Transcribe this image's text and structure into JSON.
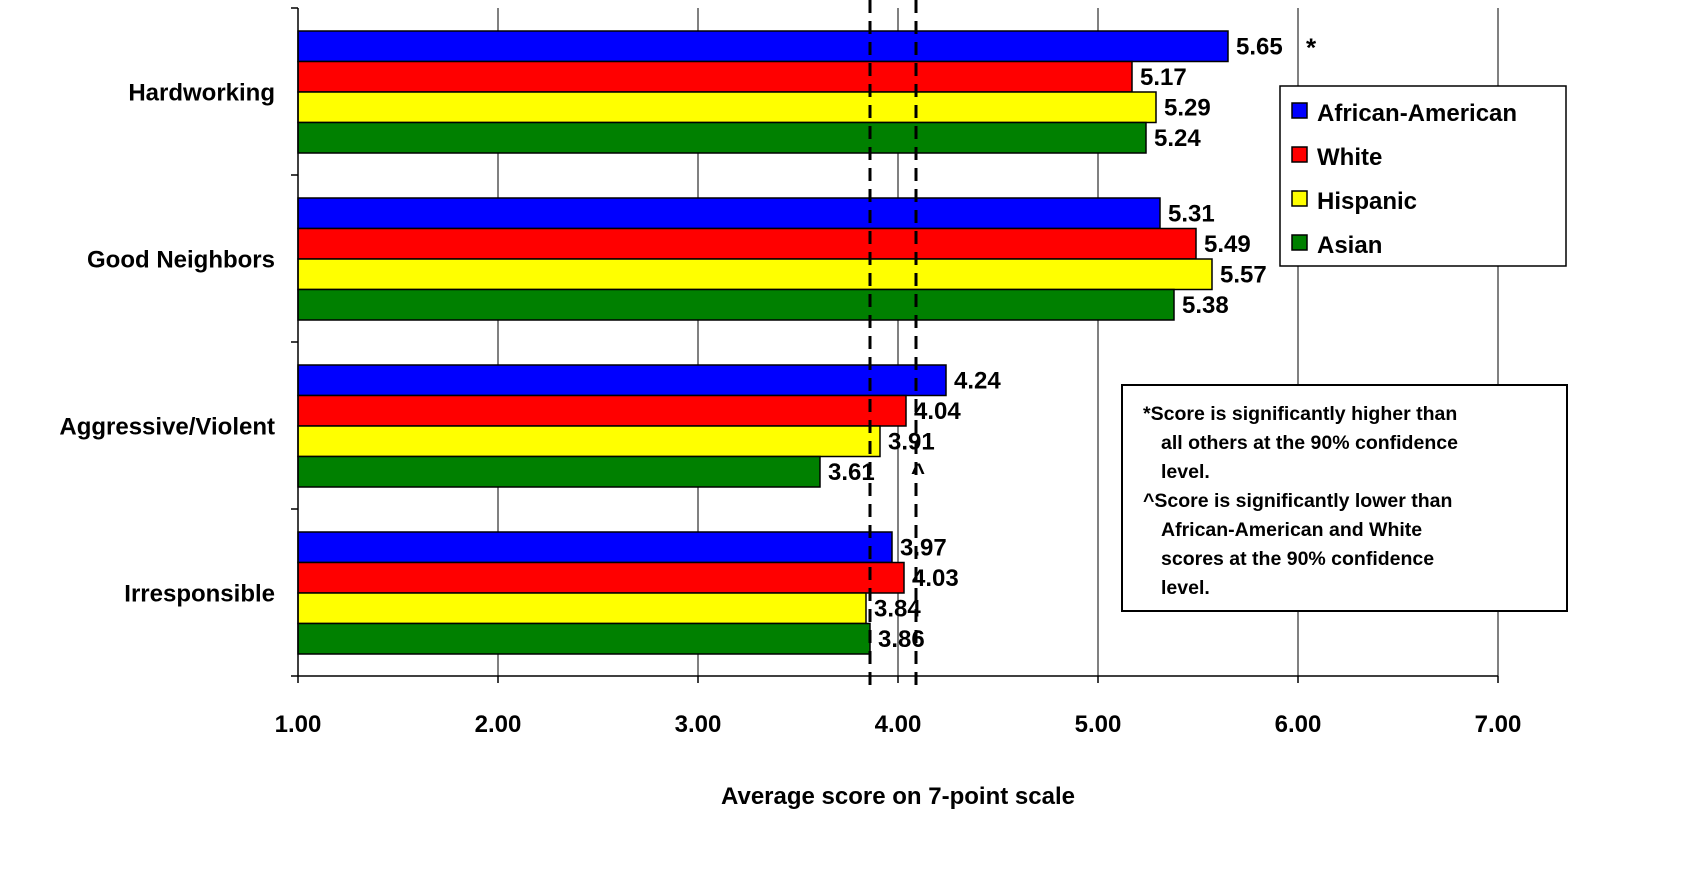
{
  "chart_data": {
    "type": "bar",
    "orientation": "horizontal",
    "title": "",
    "xlabel": "Average score on 7-point scale",
    "ylabel": "",
    "xlim": [
      1,
      7
    ],
    "x_ticks": [
      "1.00",
      "2.00",
      "3.00",
      "4.00",
      "5.00",
      "6.00",
      "7.00"
    ],
    "grid": "vertical",
    "legend_position": "right",
    "categories": [
      "Hardworking",
      "Good Neighbors",
      "Aggressive/Violent",
      "Irresponsible"
    ],
    "series": [
      {
        "name": "African-American",
        "color": "#0000ff",
        "values": [
          5.65,
          5.31,
          4.24,
          3.97
        ],
        "labels": [
          "5.65",
          "5.31",
          "4.24",
          "3.97"
        ],
        "markers": [
          "*",
          "",
          "",
          ""
        ]
      },
      {
        "name": "White",
        "color": "#ff0000",
        "values": [
          5.17,
          5.49,
          4.04,
          4.03
        ],
        "labels": [
          "5.17",
          "5.49",
          "4.04",
          "4.03"
        ],
        "markers": [
          "",
          "",
          "",
          ""
        ]
      },
      {
        "name": "Hispanic",
        "color": "#ffff00",
        "values": [
          5.29,
          5.57,
          3.91,
          3.84
        ],
        "labels": [
          "5.29",
          "5.57",
          "3.91",
          "3.84"
        ],
        "markers": [
          "",
          "",
          "",
          ""
        ]
      },
      {
        "name": "Asian",
        "color": "#008000",
        "values": [
          5.24,
          5.38,
          3.61,
          3.86
        ],
        "labels": [
          "5.24",
          "5.38",
          "3.61",
          "3.86"
        ],
        "markers": [
          "",
          "",
          "^",
          ""
        ]
      }
    ],
    "reference_lines": [
      {
        "value": 3.86,
        "style": "dashed"
      },
      {
        "value": 4.09,
        "style": "dashed"
      }
    ],
    "annotations": [
      "*Score is significantly higher than",
      "all others at the 90% confidence",
      "level.",
      "^Score is significantly lower than",
      "African-American and White",
      "scores at the 90%  confidence",
      "level."
    ]
  }
}
